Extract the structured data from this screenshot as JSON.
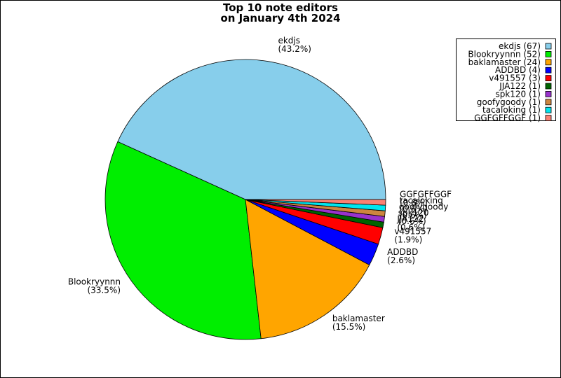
{
  "chart_data": {
    "type": "pie",
    "title": "Top 10 note editors",
    "subtitle": "on January 4th 2024",
    "categories": [
      "ekdjs",
      "Blookryynnn",
      "baklamaster",
      "ADDBD",
      "v491557",
      "JJA122",
      "spk120",
      "goofygoody",
      "tacaloking",
      "GGFGFFGGF"
    ],
    "values": [
      67,
      52,
      24,
      4,
      3,
      1,
      1,
      1,
      1,
      1
    ],
    "percent_labels": [
      "(43.2%)",
      "(33.5%)",
      "(15.5%)",
      "(2.6%)",
      "(1.9%)",
      "(0.6%)",
      "(0.6%)",
      "(0.6%)",
      "(0.6%)",
      "(0.6%)"
    ],
    "legend_labels": [
      "ekdjs (67)",
      "Blookryynnn (52)",
      "baklamaster (24)",
      "ADDBD (4)",
      "v491557 (3)",
      "JJA122 (1)",
      "spk120 (1)",
      "goofygoody (1)",
      "tacaloking (1)",
      "GGFGFFGGF (1)"
    ],
    "colors": [
      "#87ceeb",
      "#00ee00",
      "#ffa500",
      "#0000ff",
      "#ff0000",
      "#006400",
      "#9932cc",
      "#cd853f",
      "#00e5ee",
      "#fa8072"
    ],
    "legend_position": "upper right",
    "start_angle": 0,
    "direction": "counterclockwise"
  }
}
